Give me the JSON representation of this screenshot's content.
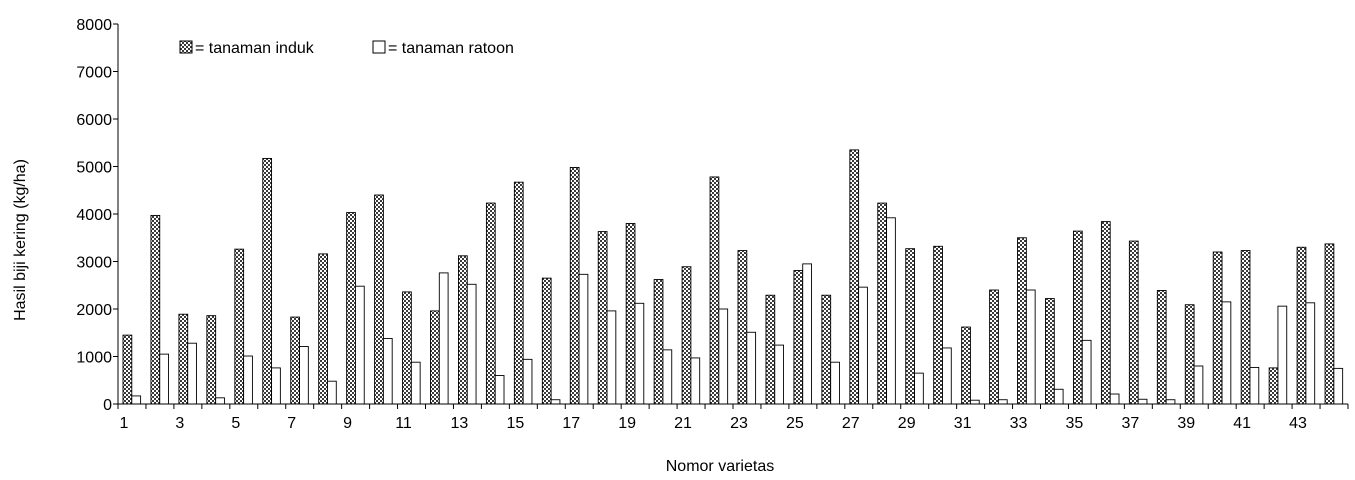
{
  "chart_data": {
    "type": "bar",
    "title": "",
    "xlabel": "Nomor varietas",
    "ylabel": "Hasil biji kering (kg/ha)",
    "ylim": [
      0,
      8000
    ],
    "yticks": [
      0,
      1000,
      2000,
      3000,
      4000,
      5000,
      6000,
      7000,
      8000
    ],
    "categories": [
      1,
      2,
      3,
      4,
      5,
      6,
      7,
      8,
      9,
      10,
      11,
      12,
      13,
      14,
      15,
      16,
      17,
      18,
      19,
      20,
      21,
      22,
      23,
      24,
      25,
      26,
      27,
      28,
      29,
      30,
      31,
      32,
      33,
      34,
      35,
      36,
      37,
      38,
      39,
      40,
      41,
      42,
      43,
      44
    ],
    "xtick_labels": [
      "1",
      "",
      "3",
      "",
      "5",
      "",
      "7",
      "",
      "9",
      "",
      "11",
      "",
      "13",
      "",
      "15",
      "",
      "17",
      "",
      "19",
      "",
      "21",
      "",
      "23",
      "",
      "25",
      "",
      "27",
      "",
      "29",
      "",
      "31",
      "",
      "33",
      "",
      "35",
      "",
      "37",
      "",
      "39",
      "",
      "41",
      "",
      "43",
      ""
    ],
    "legend_position": "top-left",
    "grid": false,
    "series": [
      {
        "name": "= tanaman induk",
        "pattern": "checkered",
        "color": "#555555",
        "values": [
          1450,
          3970,
          1890,
          1860,
          3260,
          5170,
          1830,
          3160,
          4030,
          4400,
          2360,
          1960,
          3120,
          4230,
          4670,
          2650,
          4980,
          3630,
          3800,
          2620,
          2890,
          4780,
          3230,
          2290,
          2810,
          2290,
          5350,
          4230,
          3270,
          3320,
          1620,
          2400,
          3500,
          2220,
          3640,
          3840,
          3430,
          2390,
          2090,
          3200,
          3230,
          760,
          3300,
          3370
        ]
      },
      {
        "name": "= tanaman ratoon",
        "pattern": "solid",
        "color": "#ffffff",
        "values": [
          170,
          1050,
          1280,
          130,
          1010,
          760,
          1210,
          480,
          2480,
          1380,
          880,
          2760,
          2520,
          600,
          940,
          90,
          2730,
          1960,
          2120,
          1140,
          970,
          2000,
          1510,
          1240,
          2950,
          880,
          2460,
          3920,
          650,
          1180,
          80,
          90,
          2400,
          310,
          1340,
          210,
          100,
          90,
          800,
          2150,
          770,
          2060,
          2130,
          750
        ]
      }
    ]
  }
}
